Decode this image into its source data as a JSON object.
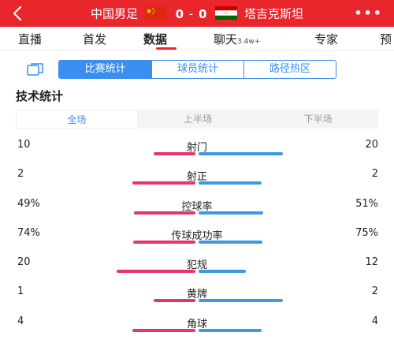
{
  "header": {
    "home_team": "中国男足",
    "home_score": "0",
    "score_sep": "-",
    "away_score": "0",
    "away_team": "塔吉克斯坦",
    "more": "•••",
    "back_icon": "chevron-left-icon"
  },
  "tabs": [
    {
      "label": "直播"
    },
    {
      "label": "首发"
    },
    {
      "label": "数据",
      "active": true
    },
    {
      "label": "聊天",
      "badge": "3.4w+"
    },
    {
      "label": "专家"
    },
    {
      "label": "预"
    }
  ],
  "segments": {
    "icon": "copy-icon",
    "items": [
      "比赛统计",
      "球员统计",
      "路径热区"
    ],
    "selected": "比赛统计"
  },
  "section_title": "技术统计",
  "halves": {
    "items": [
      "全场",
      "上半场",
      "下半场"
    ],
    "selected": "全场"
  },
  "colors": {
    "header_red": "#e8262c",
    "accent_blue": "#3a8ef0",
    "home_bar": "#e8336b",
    "away_bar": "#3a9be0"
  },
  "stats": [
    {
      "label": "射门",
      "left": "10",
      "right": "20",
      "left_value": 10,
      "right_value": 20
    },
    {
      "label": "射正",
      "left": "2",
      "right": "2",
      "left_value": 2,
      "right_value": 2
    },
    {
      "label": "控球率",
      "left": "49%",
      "right": "51%",
      "left_value": 49,
      "right_value": 51
    },
    {
      "label": "传球成功率",
      "left": "74%",
      "right": "75%",
      "left_value": 74,
      "right_value": 75
    },
    {
      "label": "犯规",
      "left": "20",
      "right": "12",
      "left_value": 20,
      "right_value": 12
    },
    {
      "label": "黄牌",
      "left": "1",
      "right": "2",
      "left_value": 1,
      "right_value": 2
    },
    {
      "label": "角球",
      "left": "4",
      "right": "4",
      "left_value": 4,
      "right_value": 4
    }
  ]
}
